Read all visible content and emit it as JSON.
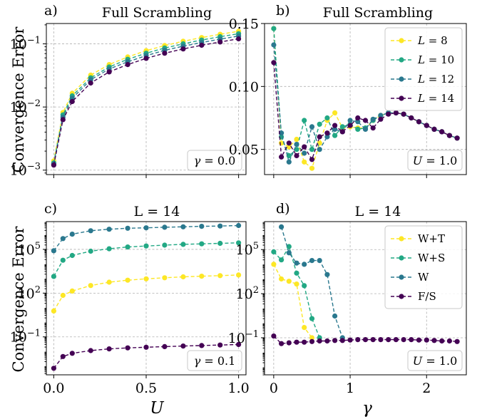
{
  "colors": {
    "L8": "#fde725",
    "L10": "#22a884",
    "L12": "#2a788e",
    "L14": "#440154",
    "WT": "#fde725",
    "WS": "#22a884",
    "W": "#2a788e",
    "FS": "#440154"
  },
  "chart_data": [
    {
      "id": "a",
      "type": "line",
      "panel_label": "a)",
      "title": "Full Scrambling",
      "ylabel": "Convergence Error",
      "xlabel": "",
      "yscale": "log",
      "xlim": [
        -0.04,
        1.04
      ],
      "ylim": [
        0.00085,
        0.21
      ],
      "xticks": [],
      "yticks": [
        {
          "v": 0.001,
          "b": "10",
          "e": "−3"
        },
        {
          "v": 0.01,
          "b": "10",
          "e": "−2"
        },
        {
          "v": 0.1,
          "b": "10",
          "e": "−1"
        }
      ],
      "annotation": "γ = 0.0",
      "legend": false,
      "x": [
        0.0,
        0.05,
        0.1,
        0.2,
        0.3,
        0.4,
        0.5,
        0.6,
        0.7,
        0.8,
        0.9,
        1.0
      ],
      "series": [
        {
          "name": "L = 8",
          "color_key": "L8",
          "values": [
            0.0014,
            0.0082,
            0.0165,
            0.032,
            0.047,
            0.062,
            0.078,
            0.094,
            0.11,
            0.126,
            0.142,
            0.158
          ]
        },
        {
          "name": "L = 10",
          "color_key": "L10",
          "values": [
            0.0013,
            0.0075,
            0.015,
            0.029,
            0.043,
            0.057,
            0.071,
            0.086,
            0.1,
            0.115,
            0.13,
            0.145
          ]
        },
        {
          "name": "L = 12",
          "color_key": "L12",
          "values": [
            0.00125,
            0.0069,
            0.0137,
            0.027,
            0.04,
            0.052,
            0.065,
            0.079,
            0.092,
            0.105,
            0.119,
            0.133
          ]
        },
        {
          "name": "L = 14",
          "color_key": "L14",
          "values": [
            0.0012,
            0.0063,
            0.0122,
            0.024,
            0.036,
            0.047,
            0.059,
            0.071,
            0.083,
            0.095,
            0.107,
            0.12
          ]
        }
      ]
    },
    {
      "id": "b",
      "type": "line",
      "panel_label": "b)",
      "title": "Full Scrambling",
      "ylabel": "",
      "xlabel": "",
      "yscale": "linear",
      "xlim": [
        -0.12,
        2.52
      ],
      "ylim": [
        0.03,
        0.15
      ],
      "xticks": [],
      "yticks": [
        {
          "v": 0.05,
          "t": "0.05"
        },
        {
          "v": 0.1,
          "t": "0.10"
        },
        {
          "v": 0.15,
          "t": "0.15"
        }
      ],
      "annotation": "U = 1.0",
      "legend": true,
      "legend_position": "top-right",
      "x": [
        0.0,
        0.1,
        0.2,
        0.3,
        0.4,
        0.5,
        0.6,
        0.7,
        0.8,
        0.9,
        1.0,
        1.1,
        1.2,
        1.3,
        1.4,
        1.5,
        1.6,
        1.7,
        1.8,
        1.9,
        2.0,
        2.1,
        2.2,
        2.3,
        2.4
      ],
      "series": [
        {
          "name": "L = 8",
          "color_key": "L8",
          "values": [
            0.146,
            0.055,
            0.052,
            0.058,
            0.04,
            0.035,
            0.055,
            0.073,
            0.079,
            0.067,
            0.068,
            0.067,
            0.067,
            0.073,
            0.077,
            0.079,
            0.079,
            0.078,
            0.075,
            0.072,
            0.069,
            0.066,
            0.064,
            0.061,
            0.059
          ]
        },
        {
          "name": "L = 10",
          "color_key": "L10",
          "values": [
            0.146,
            0.06,
            0.045,
            0.05,
            0.073,
            0.05,
            0.07,
            0.075,
            0.061,
            0.068,
            0.07,
            0.066,
            0.067,
            0.073,
            0.077,
            0.079,
            0.079,
            0.078,
            0.075,
            0.072,
            0.069,
            0.066,
            0.064,
            0.061,
            0.059
          ]
        },
        {
          "name": "L = 12",
          "color_key": "L12",
          "values": [
            0.133,
            0.063,
            0.04,
            0.054,
            0.047,
            0.068,
            0.05,
            0.06,
            0.066,
            0.064,
            0.073,
            0.072,
            0.066,
            0.074,
            0.077,
            0.079,
            0.079,
            0.078,
            0.075,
            0.072,
            0.069,
            0.066,
            0.064,
            0.061,
            0.059
          ]
        },
        {
          "name": "L = 14",
          "color_key": "L14",
          "values": [
            0.119,
            0.044,
            0.055,
            0.045,
            0.052,
            0.042,
            0.06,
            0.063,
            0.069,
            0.064,
            0.069,
            0.075,
            0.073,
            0.067,
            0.074,
            0.078,
            0.079,
            0.078,
            0.075,
            0.072,
            0.069,
            0.066,
            0.064,
            0.061,
            0.059
          ]
        }
      ]
    },
    {
      "id": "c",
      "type": "line",
      "panel_label": "c)",
      "title": "L = 14",
      "ylabel": "Convergence Error",
      "xlabel": "U",
      "yscale": "log",
      "xlim": [
        -0.04,
        1.04
      ],
      "ylim": [
        0.00025,
        8000000
      ],
      "xticks": [
        {
          "v": 0.0,
          "t": "0.0"
        },
        {
          "v": 0.5,
          "t": "0.5"
        },
        {
          "v": 1.0,
          "t": "1.0"
        }
      ],
      "yticks": [
        {
          "v": 0.1,
          "b": "10",
          "e": "−1"
        },
        {
          "v": 100,
          "b": "10",
          "e": "2"
        },
        {
          "v": 100000,
          "b": "10",
          "e": "5"
        }
      ],
      "annotation": "γ = 0.1",
      "legend": false,
      "x": [
        0.0,
        0.05,
        0.1,
        0.2,
        0.3,
        0.4,
        0.5,
        0.6,
        0.7,
        0.8,
        0.9,
        1.0
      ],
      "series": [
        {
          "name": "W+T",
          "color_key": "WT",
          "values": [
            6,
            70,
            140,
            330,
            560,
            770,
            950,
            1130,
            1300,
            1440,
            1580,
            1750
          ]
        },
        {
          "name": "W+S",
          "color_key": "WS",
          "values": [
            1400,
            18000,
            38000,
            75000,
            110000,
            145000,
            170000,
            195000,
            220000,
            240000,
            260000,
            280000
          ]
        },
        {
          "name": "W",
          "color_key": "W",
          "values": [
            80000,
            550000,
            1100000,
            1900000,
            2400000,
            2800000,
            3000000,
            3300000,
            3500000,
            3800000,
            4000000,
            4300000
          ]
        },
        {
          "name": "F/S",
          "color_key": "FS",
          "values": [
            0.0007,
            0.0045,
            0.0075,
            0.0115,
            0.015,
            0.0175,
            0.0195,
            0.0215,
            0.0235,
            0.0255,
            0.0275,
            0.03
          ]
        }
      ]
    },
    {
      "id": "d",
      "type": "line",
      "panel_label": "d)",
      "title": "L = 14",
      "ylabel": "",
      "xlabel": "γ",
      "yscale": "log",
      "xlim": [
        -0.12,
        2.52
      ],
      "ylim": [
        0.0003,
        8000000
      ],
      "xticks": [
        {
          "v": 0.0,
          "t": "0"
        },
        {
          "v": 1.0,
          "t": "1"
        },
        {
          "v": 2.0,
          "t": "2"
        }
      ],
      "yticks": [
        {
          "v": 0.1,
          "b": "10",
          "e": "−1"
        },
        {
          "v": 100,
          "b": "10",
          "e": "2"
        },
        {
          "v": 100000,
          "b": "10",
          "e": "5"
        }
      ],
      "annotation": "U = 1.0",
      "legend": true,
      "legend_position": "top-right",
      "series": [
        {
          "name": "W+T",
          "color_key": "WT",
          "x": [
            0.0,
            0.1,
            0.2,
            0.3,
            0.4,
            0.5
          ],
          "values": [
            10000,
            1000,
            700,
            450,
            0.5,
            0.1
          ]
        },
        {
          "name": "W+S",
          "color_key": "WS",
          "x": [
            0.0,
            0.1,
            0.2,
            0.3,
            0.4,
            0.5,
            0.6
          ],
          "values": [
            70000,
            20000,
            160000,
            2500,
            350,
            2,
            0.1
          ]
        },
        {
          "name": "W",
          "color_key": "W",
          "x": [
            0.1,
            0.2,
            0.3,
            0.4,
            0.5,
            0.6,
            0.7,
            0.8,
            0.9
          ],
          "values": [
            3500000,
            60000,
            12000,
            10000,
            18000,
            18000,
            2000,
            3,
            0.1
          ]
        },
        {
          "name": "F/S",
          "color_key": "FS",
          "x": [
            0.0,
            0.1,
            0.2,
            0.3,
            0.4,
            0.5,
            0.6,
            0.7,
            0.8,
            0.9,
            1.0,
            1.1,
            1.2,
            1.3,
            1.4,
            1.5,
            1.6,
            1.7,
            1.8,
            1.9,
            2.0,
            2.1,
            2.2,
            2.3,
            2.4
          ],
          "values": [
            0.13,
            0.04,
            0.045,
            0.05,
            0.05,
            0.055,
            0.06,
            0.06,
            0.065,
            0.065,
            0.07,
            0.075,
            0.075,
            0.075,
            0.075,
            0.075,
            0.075,
            0.075,
            0.075,
            0.07,
            0.07,
            0.065,
            0.06,
            0.06,
            0.055
          ]
        }
      ]
    }
  ]
}
